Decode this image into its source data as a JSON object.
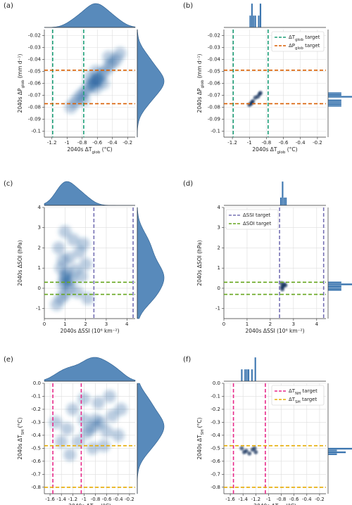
{
  "chart_data": [
    {
      "type": "density",
      "panel_label": "(a)",
      "marginal": "kde",
      "xlabel": [
        "2040s ΔT",
        {
          "sub": "glob"
        },
        " (°C)"
      ],
      "ylabel": [
        "2040s ΔP",
        {
          "sub": "glob"
        },
        " (mm d⁻¹)"
      ],
      "xlim": [
        -1.3,
        -0.1
      ],
      "xticks": [
        -1.2,
        -1.0,
        -0.8,
        -0.6,
        -0.4,
        -0.2
      ],
      "ylim": [
        -0.105,
        -0.015
      ],
      "yticks": [
        -0.1,
        -0.09,
        -0.08,
        -0.07,
        -0.06,
        -0.05,
        -0.04,
        -0.03,
        -0.02
      ],
      "grid": true,
      "vlines": {
        "color": "#1b9e77",
        "values": [
          -1.19,
          -0.78
        ]
      },
      "hlines": {
        "color": "#d95f02",
        "values": [
          -0.049,
          -0.077
        ]
      },
      "points": [
        [
          -0.62,
          -0.057
        ],
        [
          -0.6,
          -0.056
        ],
        [
          -0.65,
          -0.059
        ],
        [
          -0.55,
          -0.053
        ],
        [
          -0.7,
          -0.062
        ],
        [
          -0.5,
          -0.05
        ],
        [
          -0.75,
          -0.066
        ],
        [
          -0.45,
          -0.046
        ],
        [
          -0.8,
          -0.069
        ],
        [
          -0.4,
          -0.043
        ],
        [
          -0.85,
          -0.072
        ],
        [
          -0.9,
          -0.076
        ],
        [
          -0.35,
          -0.04
        ],
        [
          -0.62,
          -0.05
        ],
        [
          -0.62,
          -0.064
        ],
        [
          -0.7,
          -0.055
        ],
        [
          -0.52,
          -0.06
        ],
        [
          -0.78,
          -0.074
        ],
        [
          -0.45,
          -0.038
        ],
        [
          -0.95,
          -0.08
        ],
        [
          -0.3,
          -0.035
        ],
        [
          -0.58,
          -0.058
        ],
        [
          -0.66,
          -0.061
        ]
      ]
    },
    {
      "type": "density",
      "panel_label": "(b)",
      "marginal": "hist",
      "legend": "upper right",
      "xlabel": [
        "2040s ΔT",
        {
          "sub": "glob"
        },
        " (°C)"
      ],
      "ylabel": [
        "2040s ΔP",
        {
          "sub": "glob"
        },
        " (mm d⁻¹)"
      ],
      "xlim": [
        -1.3,
        -0.1
      ],
      "xticks": [
        -1.2,
        -1.0,
        -0.8,
        -0.6,
        -0.4,
        -0.2
      ],
      "ylim": [
        -0.105,
        -0.015
      ],
      "yticks": [
        -0.1,
        -0.09,
        -0.08,
        -0.07,
        -0.06,
        -0.05,
        -0.04,
        -0.03,
        -0.02
      ],
      "grid": true,
      "vlines": {
        "name": [
          "ΔT",
          {
            "sub": "glob"
          },
          " target"
        ],
        "color": "#1b9e77",
        "values": [
          -1.19,
          -0.78
        ]
      },
      "hlines": {
        "name": [
          "ΔP",
          {
            "sub": "glob"
          },
          " target"
        ],
        "color": "#d95f02",
        "values": [
          -0.049,
          -0.077
        ]
      },
      "points": [
        [
          -0.97,
          -0.076
        ],
        [
          -0.96,
          -0.075
        ],
        [
          -0.98,
          -0.077
        ],
        [
          -0.88,
          -0.069
        ],
        [
          -0.87,
          -0.068
        ],
        [
          -0.93,
          -0.072
        ],
        [
          -0.9,
          -0.071
        ],
        [
          -1.0,
          -0.078
        ]
      ]
    },
    {
      "type": "density",
      "panel_label": "(c)",
      "marginal": "kde",
      "xlabel": "2040s ΔSSI (10⁶ km⁻²)",
      "ylabel": "2040s ΔSOI (hPa)",
      "xlim": [
        0,
        4.4
      ],
      "xticks": [
        0,
        1,
        2,
        3,
        4
      ],
      "ylim": [
        -1.5,
        4
      ],
      "yticks": [
        -1,
        0,
        1,
        2,
        3,
        4
      ],
      "grid": true,
      "vlines": {
        "color": "#7570b3",
        "values": [
          2.4,
          4.3
        ]
      },
      "hlines": {
        "color": "#66a61e",
        "values": [
          0.3,
          -0.3
        ]
      },
      "points": [
        [
          1,
          0.5
        ],
        [
          0.9,
          0.2
        ],
        [
          1.1,
          0.8
        ],
        [
          1.0,
          -0.3
        ],
        [
          0.8,
          1.0
        ],
        [
          1.3,
          0.4
        ],
        [
          1.5,
          0.9
        ],
        [
          1.2,
          1.5
        ],
        [
          0.7,
          2.0
        ],
        [
          1.6,
          -0.2
        ],
        [
          1.8,
          0.6
        ],
        [
          2.0,
          1.2
        ],
        [
          0.6,
          -0.8
        ],
        [
          1.4,
          2.4
        ],
        [
          1.0,
          2.8
        ],
        [
          2.1,
          -0.5
        ],
        [
          0.9,
          1.4
        ],
        [
          1.2,
          0.0
        ],
        [
          1.7,
          1.8
        ],
        [
          0.8,
          -0.5
        ],
        [
          1.9,
          2.2
        ],
        [
          1.1,
          0.3
        ],
        [
          1.0,
          0.6
        ]
      ]
    },
    {
      "type": "density",
      "panel_label": "(d)",
      "marginal": "hist",
      "legend": "upper left",
      "xlabel": "2040s ΔSSI (10⁶ km⁻²)",
      "ylabel": "2040s ΔSOI (hPa)",
      "xlim": [
        0,
        4.4
      ],
      "xticks": [
        0,
        1,
        2,
        3,
        4
      ],
      "ylim": [
        -1.5,
        4
      ],
      "yticks": [
        -1,
        0,
        1,
        2,
        3,
        4
      ],
      "grid": true,
      "vlines": {
        "name": "ΔSSI target",
        "color": "#7570b3",
        "values": [
          2.4,
          4.3
        ]
      },
      "hlines": {
        "name": "ΔSOI target",
        "color": "#66a61e",
        "values": [
          0.3,
          -0.3
        ]
      },
      "points": [
        [
          2.55,
          0.1
        ],
        [
          2.5,
          0.05
        ],
        [
          2.6,
          0.2
        ],
        [
          2.52,
          -0.05
        ],
        [
          2.65,
          0.15
        ],
        [
          2.48,
          0.25
        ]
      ]
    },
    {
      "type": "density",
      "panel_label": "(e)",
      "marginal": "kde",
      "xlabel": [
        "2040s ΔT",
        {
          "sub": "NH"
        },
        " (°C)"
      ],
      "ylabel": [
        "2040s ΔT",
        {
          "sub": "SH"
        },
        " (°C)"
      ],
      "xlim": [
        -1.7,
        -0.1
      ],
      "xticks": [
        -1.6,
        -1.4,
        -1.2,
        -1.0,
        -0.8,
        -0.6,
        -0.4,
        -0.2
      ],
      "ylim": [
        -0.85,
        0
      ],
      "yticks": [
        -0.8,
        -0.7,
        -0.6,
        -0.5,
        -0.4,
        -0.3,
        -0.2,
        -0.1,
        {
          "value": 0,
          "label": "0.0"
        }
      ],
      "grid": true,
      "vlines": {
        "color": "#e7298a",
        "values": [
          -1.55,
          -1.05
        ]
      },
      "hlines": {
        "color": "#e6ab02",
        "values": [
          -0.48,
          -0.8
        ]
      },
      "points": [
        [
          -0.8,
          -0.33
        ],
        [
          -0.9,
          -0.35
        ],
        [
          -0.7,
          -0.3
        ],
        [
          -1.0,
          -0.28
        ],
        [
          -0.6,
          -0.37
        ],
        [
          -1.2,
          -0.2
        ],
        [
          -1.3,
          -0.35
        ],
        [
          -0.5,
          -0.25
        ],
        [
          -1.4,
          -0.45
        ],
        [
          -0.4,
          -0.4
        ],
        [
          -0.75,
          -0.15
        ],
        [
          -1.1,
          -0.45
        ],
        [
          -0.85,
          -0.5
        ],
        [
          -1.5,
          -0.3
        ],
        [
          -0.65,
          -0.48
        ],
        [
          -1.0,
          -0.12
        ],
        [
          -0.35,
          -0.2
        ],
        [
          -0.95,
          -0.38
        ],
        [
          -0.8,
          -0.28
        ],
        [
          -1.25,
          -0.55
        ],
        [
          -0.55,
          -0.1
        ]
      ]
    },
    {
      "type": "density",
      "panel_label": "(f)",
      "marginal": "hist",
      "legend": "upper right",
      "xlabel": [
        "2040s ΔT",
        {
          "sub": "NH"
        },
        " (°C)"
      ],
      "ylabel": [
        "2040s ΔT",
        {
          "sub": "SH"
        },
        " (°C)"
      ],
      "xlim": [
        -1.7,
        -0.1
      ],
      "xticks": [
        -1.6,
        -1.4,
        -1.2,
        -1.0,
        -0.8,
        -0.6,
        -0.4,
        -0.2
      ],
      "ylim": [
        -0.85,
        0
      ],
      "yticks": [
        -0.8,
        -0.7,
        -0.6,
        -0.5,
        -0.4,
        -0.3,
        -0.2,
        -0.1,
        {
          "value": 0,
          "label": "0.0"
        }
      ],
      "grid": true,
      "vlines": {
        "name": [
          "ΔT",
          {
            "sub": "NH"
          },
          " target"
        ],
        "color": "#e7298a",
        "values": [
          -1.55,
          -1.05
        ]
      },
      "hlines": {
        "name": [
          "ΔT",
          {
            "sub": "SH"
          },
          " target"
        ],
        "color": "#e6ab02",
        "values": [
          -0.48,
          -0.8
        ]
      },
      "points": [
        [
          -1.35,
          -0.52
        ],
        [
          -1.38,
          -0.53
        ],
        [
          -1.25,
          -0.51
        ],
        [
          -1.22,
          -0.5
        ],
        [
          -1.3,
          -0.54
        ],
        [
          -1.2,
          -0.53
        ],
        [
          -1.42,
          -0.5
        ]
      ]
    }
  ]
}
